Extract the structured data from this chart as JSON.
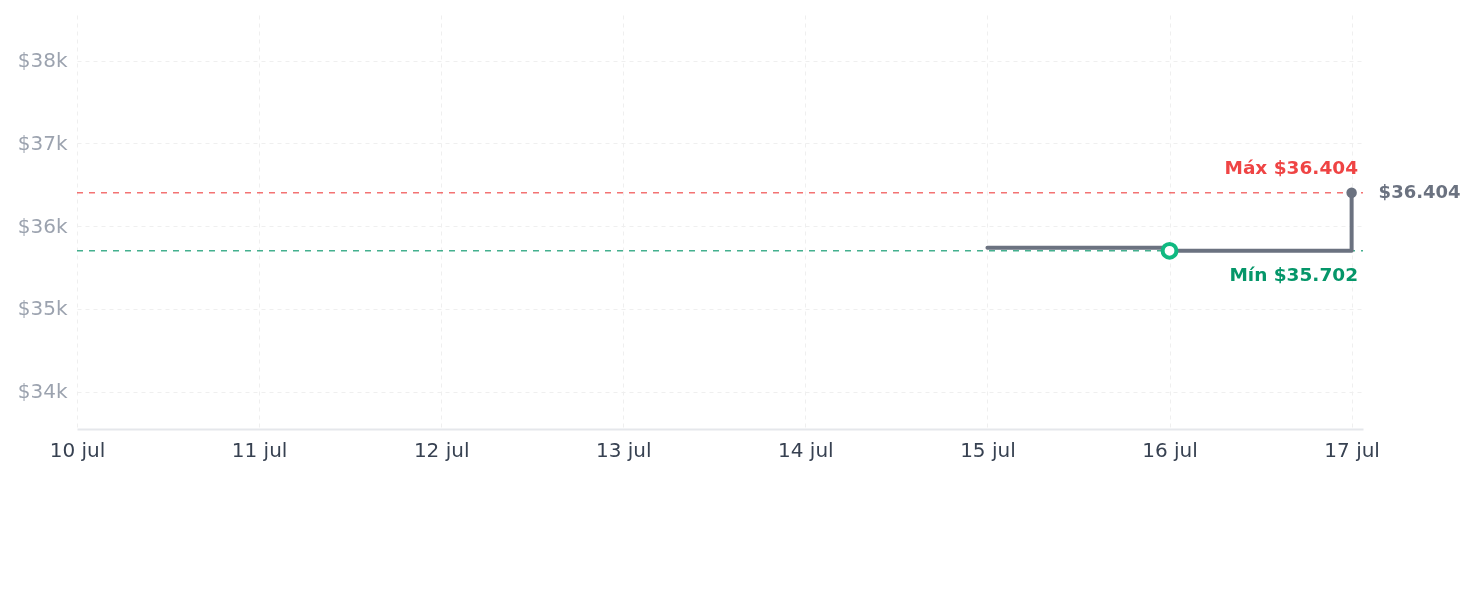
{
  "chart_data": {
    "type": "step",
    "x": [
      "--07-15",
      "--07-16",
      "--07-17"
    ],
    "series": [
      {
        "color": "#6b7280",
        "marker": "none",
        "values": [
          35740,
          35702,
          36404
        ]
      },
      {
        "type": "scatter",
        "color": "#6b7280",
        "marker": "circle",
        "x": [
          "--07-17"
        ],
        "values": [
          36404
        ],
        "value_labels": [
          "$36.404"
        ]
      },
      {
        "type": "scatter",
        "color": "#10b981",
        "marker": "circle",
        "x": [
          "--07-16"
        ],
        "values": [
          35702
        ]
      }
    ],
    "xlim": [
      "--07-10",
      "--07-17T01:30"
    ],
    "xticks": [
      {
        "value": "--07-10",
        "label": "10 jul"
      },
      {
        "value": "--07-11",
        "label": "11 jul"
      },
      {
        "value": "--07-12",
        "label": "12 jul"
      },
      {
        "value": "--07-13",
        "label": "13 jul"
      },
      {
        "value": "--07-14",
        "label": "14 jul"
      },
      {
        "value": "--07-15",
        "label": "15 jul"
      },
      {
        "value": "--07-16",
        "label": "16 jul"
      },
      {
        "value": "--07-17",
        "label": "17 jul"
      }
    ],
    "ylim": [
      33550,
      38550
    ],
    "yticks": [
      {
        "value": 34000,
        "label": "$34k"
      },
      {
        "value": 35000,
        "label": "$35k"
      },
      {
        "value": 36000,
        "label": "$36k"
      },
      {
        "value": 37000,
        "label": "$37k"
      },
      {
        "value": 38000,
        "label": "$38k"
      }
    ],
    "ref_lines": [
      {
        "axis": "y",
        "value": 36404,
        "label": "Máx $36.404",
        "color": "#ef4444",
        "line_style": "dashed"
      },
      {
        "axis": "y",
        "value": 35702,
        "label": "Mín $35.702",
        "color": "#059669",
        "line_style": "dashed"
      }
    ],
    "grid": true
  }
}
